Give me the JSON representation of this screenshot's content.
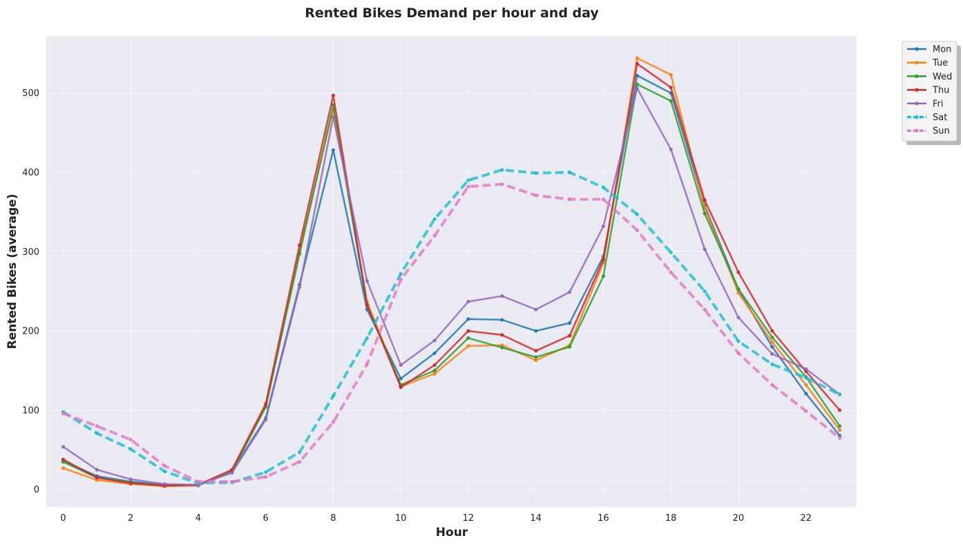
{
  "chart_data": {
    "type": "line",
    "title": "Rented Bikes Demand per hour and day",
    "xlabel": "Hour",
    "ylabel": "Rented Bikes (average)",
    "xlim": [
      -0.5,
      23.5
    ],
    "ylim": [
      -22,
      572
    ],
    "xticks": [
      0,
      2,
      4,
      6,
      8,
      10,
      12,
      14,
      16,
      18,
      20,
      22
    ],
    "yticks": [
      0,
      100,
      200,
      300,
      400,
      500
    ],
    "grid": true,
    "legend_position": "outside-top-right",
    "x": [
      0,
      1,
      2,
      3,
      4,
      5,
      6,
      7,
      8,
      9,
      10,
      11,
      12,
      13,
      14,
      15,
      16,
      17,
      18,
      19,
      20,
      21,
      22,
      23
    ],
    "series": [
      {
        "name": "Mon",
        "color": "#1f77b4",
        "style": "solid",
        "values": [
          36,
          17,
          10,
          6,
          5,
          23,
          90,
          258,
          428,
          227,
          140,
          172,
          215,
          214,
          200,
          210,
          294,
          522,
          500,
          358,
          252,
          180,
          121,
          68
        ]
      },
      {
        "name": "Tue",
        "color": "#ff7f0e",
        "style": "solid",
        "values": [
          27,
          12,
          7,
          4,
          5,
          23,
          106,
          300,
          480,
          237,
          130,
          146,
          181,
          182,
          163,
          182,
          286,
          544,
          523,
          355,
          248,
          186,
          132,
          75
        ]
      },
      {
        "name": "Wed",
        "color": "#2ca02c",
        "style": "solid",
        "values": [
          35,
          15,
          9,
          5,
          6,
          23,
          104,
          297,
          485,
          232,
          132,
          150,
          191,
          179,
          167,
          180,
          269,
          511,
          490,
          348,
          253,
          192,
          142,
          80
        ]
      },
      {
        "name": "Thu",
        "color": "#d62728",
        "style": "solid",
        "values": [
          38,
          15,
          8,
          5,
          6,
          25,
          108,
          308,
          497,
          233,
          129,
          157,
          200,
          195,
          175,
          194,
          290,
          537,
          507,
          365,
          274,
          200,
          149,
          100
        ]
      },
      {
        "name": "Fri",
        "color": "#9467bd",
        "style": "solid",
        "values": [
          54,
          25,
          13,
          7,
          6,
          21,
          88,
          255,
          470,
          263,
          157,
          188,
          237,
          244,
          227,
          249,
          332,
          506,
          429,
          303,
          217,
          171,
          152,
          120
        ]
      },
      {
        "name": "Sat",
        "color": "#17becf",
        "style": "dashed",
        "values": [
          98,
          71,
          51,
          23,
          8,
          9,
          22,
          47,
          118,
          191,
          272,
          341,
          390,
          403,
          399,
          400,
          381,
          347,
          299,
          250,
          187,
          158,
          141,
          120
        ]
      },
      {
        "name": "Sun",
        "color": "#e377c2",
        "style": "dashed",
        "values": [
          96,
          80,
          63,
          30,
          10,
          10,
          16,
          35,
          85,
          158,
          265,
          320,
          382,
          385,
          371,
          366,
          366,
          327,
          274,
          227,
          172,
          132,
          99,
          65
        ]
      }
    ]
  }
}
